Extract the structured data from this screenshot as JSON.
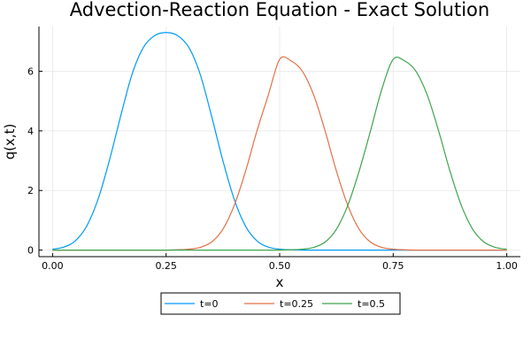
{
  "chart_data": {
    "type": "line",
    "title": "Advection-Reaction Equation - Exact Solution",
    "xlabel": "x",
    "ylabel": "q(x,t)",
    "xlim": [
      -0.03,
      1.03
    ],
    "ylim": [
      -0.22,
      7.5
    ],
    "xticks": [
      0.0,
      0.25,
      0.5,
      0.75,
      1.0
    ],
    "xtick_labels": [
      "0.00",
      "0.25",
      "0.50",
      "0.75",
      "1.00"
    ],
    "yticks": [
      0,
      2,
      4,
      6
    ],
    "ytick_labels": [
      "0",
      "2",
      "4",
      "6"
    ],
    "grid": true,
    "legend_position": "bottom-center outside",
    "x": [
      0.0,
      0.025,
      0.05,
      0.075,
      0.1,
      0.125,
      0.15,
      0.175,
      0.2,
      0.225,
      0.25,
      0.275,
      0.3,
      0.325,
      0.35,
      0.375,
      0.4,
      0.425,
      0.45,
      0.475,
      0.5,
      0.525,
      0.55,
      0.575,
      0.6,
      0.625,
      0.65,
      0.675,
      0.7,
      0.725,
      0.75,
      0.775,
      0.8,
      0.825,
      0.85,
      0.875,
      0.9,
      0.925,
      0.95,
      0.975,
      1.0
    ],
    "series": [
      {
        "name": "t=0",
        "color": "#009af9",
        "values": [
          0.03,
          0.1,
          0.31,
          0.8,
          1.7,
          3.0,
          4.5,
          5.9,
          6.8,
          7.2,
          7.3,
          7.2,
          6.8,
          5.9,
          4.5,
          3.0,
          1.7,
          0.8,
          0.31,
          0.1,
          0.03,
          0.01,
          0.0,
          0.0,
          0.0,
          0.0,
          0.0,
          0.0,
          0.0,
          0.0,
          0.0,
          0.0,
          0.0,
          0.0,
          0.0,
          0.0,
          0.0,
          0.0,
          0.0,
          0.0,
          0.0
        ]
      },
      {
        "name": "t=0.25",
        "color": "#e26f46",
        "values": [
          0.0,
          0.0,
          0.0,
          0.0,
          0.0,
          0.0,
          0.0,
          0.0,
          0.0,
          0.0,
          0.0,
          0.01,
          0.03,
          0.09,
          0.27,
          0.7,
          1.5,
          2.65,
          4.0,
          5.2,
          6.4,
          6.35,
          6.0,
          5.2,
          4.0,
          2.65,
          1.5,
          0.7,
          0.27,
          0.09,
          0.03,
          0.01,
          0.0,
          0.0,
          0.0,
          0.0,
          0.0,
          0.0,
          0.0,
          0.0,
          0.0
        ]
      },
      {
        "name": "t=0.5",
        "color": "#3da44d",
        "values": [
          0.0,
          0.0,
          0.0,
          0.0,
          0.0,
          0.0,
          0.0,
          0.0,
          0.0,
          0.0,
          0.0,
          0.0,
          0.0,
          0.0,
          0.0,
          0.0,
          0.0,
          0.0,
          0.0,
          0.0,
          0.0,
          0.01,
          0.03,
          0.09,
          0.27,
          0.7,
          1.5,
          2.65,
          4.0,
          5.4,
          6.4,
          6.35,
          6.0,
          5.2,
          4.0,
          2.65,
          1.5,
          0.7,
          0.27,
          0.09,
          0.03
        ]
      }
    ]
  }
}
